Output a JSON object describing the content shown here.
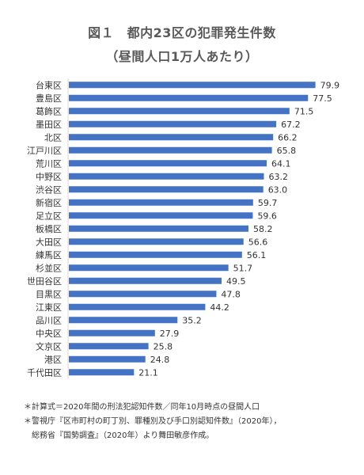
{
  "title": "図１　都内23区の犯罪発生件数",
  "subtitle": "（昼間人口1万人あたり）",
  "chart_data": {
    "type": "bar",
    "orientation": "horizontal",
    "title": "図１　都内23区の犯罪発生件数",
    "subtitle": "（昼間人口1万人あたり）",
    "categories": [
      "台東区",
      "豊島区",
      "葛飾区",
      "墨田区",
      "北区",
      "江戸川区",
      "荒川区",
      "中野区",
      "渋谷区",
      "新宿区",
      "足立区",
      "板橋区",
      "大田区",
      "練馬区",
      "杉並区",
      "世田谷区",
      "目黒区",
      "江東区",
      "品川区",
      "中央区",
      "文京区",
      "港区",
      "千代田区"
    ],
    "values": [
      79.9,
      77.5,
      71.5,
      67.2,
      66.2,
      65.8,
      64.1,
      63.2,
      63.0,
      59.7,
      59.6,
      58.2,
      56.6,
      56.1,
      51.7,
      49.5,
      47.8,
      44.2,
      35.2,
      27.9,
      25.8,
      24.8,
      21.1
    ],
    "value_labels": [
      "79.9",
      "77.5",
      "71.5",
      "67.2",
      "66.2",
      "65.8",
      "64.1",
      "63.2",
      "63.0",
      "59.7",
      "59.6",
      "58.2",
      "56.6",
      "56.1",
      "51.7",
      "49.5",
      "47.8",
      "44.2",
      "35.2",
      "27.9",
      "25.8",
      "24.8",
      "21.1"
    ],
    "bar_color": "#4472C4",
    "xlim": [
      0,
      80
    ],
    "grid": false,
    "legend": "none"
  },
  "notes": {
    "line1": "＊計算式＝2020年間の刑法犯認知件数／同年10月時点の昼間人口",
    "line2": "＊警視庁『区市町村の町丁別、罪種別及び手口別認知件数』（2020年），",
    "line3": "総務省『国勢調査』（2020年）より舞田敏彦作成。"
  }
}
